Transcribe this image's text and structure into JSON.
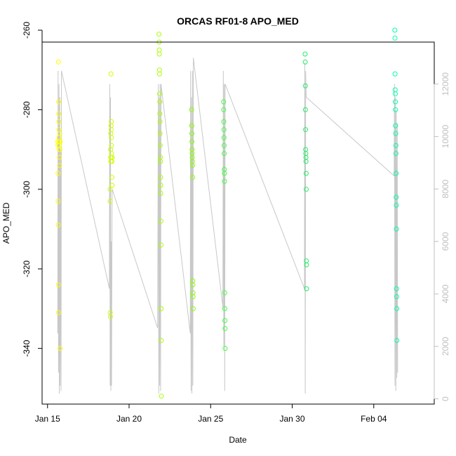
{
  "chart_data": {
    "type": "scatter",
    "title": "ORCAS RF01-8 APO_MED",
    "xlabel": "Date",
    "ylabel": "APO_MED",
    "x_axis": {
      "type": "date",
      "xlim": [
        "2016-01-14T16:00",
        "2016-02-07T17:00"
      ],
      "ticks": [
        {
          "date": "2016-01-15T00:00",
          "label": "Jan 15"
        },
        {
          "date": "2016-01-20T00:00",
          "label": "Jan 20"
        },
        {
          "date": "2016-01-25T00:00",
          "label": "Jan 25"
        },
        {
          "date": "2016-01-30T00:00",
          "label": "Jan 30"
        },
        {
          "date": "2016-02-04T00:00",
          "label": "Feb 04"
        }
      ]
    },
    "y_axis": {
      "ylim": [
        -354,
        -263
      ],
      "ticks": [
        -260,
        -280,
        -300,
        -320,
        -340
      ]
    },
    "right_axis": {
      "color": "#bfbfbf",
      "ylim": [
        -200,
        13600
      ],
      "ticks": [
        0,
        2000,
        4000,
        6000,
        8000,
        10000,
        12000
      ]
    },
    "grid": false,
    "altitude_trace_color": "#c8c8c8",
    "altitude_trace": [
      [
        "2016-01-15T15:00",
        2500
      ],
      [
        "2016-01-15T15:30",
        12500
      ],
      [
        "2016-01-15T16:10",
        1000
      ],
      [
        "2016-01-15T16:50",
        12000
      ],
      [
        "2016-01-15T17:20",
        200
      ],
      [
        "2016-01-15T18:00",
        11500
      ],
      [
        "2016-01-15T18:30",
        500
      ],
      [
        "2016-01-15T19:10",
        9500
      ],
      [
        "2016-01-15T19:50",
        300
      ],
      [
        "2016-01-15T20:30",
        12500
      ],
      [
        "2016-01-18T19:00",
        4200
      ],
      [
        "2016-01-18T19:30",
        12000
      ],
      [
        "2016-01-18T20:10",
        500
      ],
      [
        "2016-01-18T20:40",
        11500
      ],
      [
        "2016-01-18T21:10",
        300
      ],
      [
        "2016-01-18T21:40",
        6000
      ],
      [
        "2016-01-18T22:10",
        500
      ],
      [
        "2016-01-18T23:00",
        8000
      ],
      [
        "2016-01-21T18:00",
        2700
      ],
      [
        "2016-01-21T19:00",
        12000
      ],
      [
        "2016-01-21T19:40",
        200
      ],
      [
        "2016-01-21T20:20",
        11500
      ],
      [
        "2016-01-21T21:00",
        500
      ],
      [
        "2016-01-21T21:40",
        12000
      ],
      [
        "2016-01-21T22:20",
        300
      ],
      [
        "2016-01-21T23:00",
        12000
      ],
      [
        "2016-01-23T18:00",
        2500
      ],
      [
        "2016-01-23T18:30",
        12500
      ],
      [
        "2016-01-23T19:10",
        300
      ],
      [
        "2016-01-23T19:50",
        11500
      ],
      [
        "2016-01-23T20:30",
        200
      ],
      [
        "2016-01-23T21:10",
        12500
      ],
      [
        "2016-01-23T21:50",
        500
      ],
      [
        "2016-01-23T22:30",
        13000
      ],
      [
        "2016-01-25T18:00",
        3500
      ],
      [
        "2016-01-25T18:40",
        12500
      ],
      [
        "2016-01-25T19:20",
        2000
      ],
      [
        "2016-01-25T20:00",
        12000
      ],
      [
        "2016-01-25T20:40",
        300
      ],
      [
        "2016-01-25T21:20",
        12000
      ],
      [
        "2016-01-30T18:00",
        4200
      ],
      [
        "2016-01-30T18:30",
        12800
      ],
      [
        "2016-01-30T19:10",
        200
      ],
      [
        "2016-01-30T19:50",
        12500
      ],
      [
        "2016-01-30T20:40",
        11500
      ],
      [
        "2016-02-05T06:00",
        8500
      ],
      [
        "2016-02-05T06:30",
        12000
      ],
      [
        "2016-02-05T07:10",
        500
      ],
      [
        "2016-02-05T07:50",
        11500
      ],
      [
        "2016-02-05T08:30",
        300
      ],
      [
        "2016-02-05T09:10",
        11000
      ],
      [
        "2016-02-05T09:50",
        800
      ],
      [
        "2016-02-05T10:30",
        10500
      ],
      [
        "2016-02-05T11:10",
        1000
      ]
    ],
    "series": [
      {
        "color": "#ffff00",
        "points": [
          [
            "2016-01-15T16:00",
            -268
          ],
          [
            "2016-01-15T15:10",
            -288
          ],
          [
            "2016-01-15T15:20",
            -289
          ],
          [
            "2016-01-15T15:30",
            -296
          ],
          [
            "2016-01-15T15:40",
            -303
          ],
          [
            "2016-01-15T15:50",
            -309
          ],
          [
            "2016-01-15T16:00",
            -324
          ],
          [
            "2016-01-15T16:10",
            -331
          ],
          [
            "2016-01-15T16:20",
            -278
          ],
          [
            "2016-01-15T16:30",
            -281
          ],
          [
            "2016-01-15T16:40",
            -283
          ],
          [
            "2016-01-15T16:50",
            -285
          ],
          [
            "2016-01-15T17:00",
            -287
          ],
          [
            "2016-01-15T17:10",
            -288
          ],
          [
            "2016-01-15T17:20",
            -289
          ],
          [
            "2016-01-15T17:30",
            -290
          ],
          [
            "2016-01-15T17:40",
            -292
          ],
          [
            "2016-01-15T17:50",
            -294
          ],
          [
            "2016-01-15T18:00",
            -286
          ],
          [
            "2016-01-15T18:10",
            -288
          ],
          [
            "2016-01-15T18:20",
            -290
          ],
          [
            "2016-01-15T18:30",
            -340
          ],
          [
            "2016-01-15T18:40",
            -288
          ]
        ]
      },
      {
        "color": "#ccff00",
        "points": [
          [
            "2016-01-18T20:00",
            -300
          ],
          [
            "2016-01-18T20:10",
            -303
          ],
          [
            "2016-01-18T20:20",
            -331
          ],
          [
            "2016-01-18T20:30",
            -332
          ],
          [
            "2016-01-18T20:40",
            -290
          ],
          [
            "2016-01-18T20:50",
            -292
          ],
          [
            "2016-01-18T21:00",
            -286
          ],
          [
            "2016-01-18T21:10",
            -293
          ],
          [
            "2016-01-18T21:20",
            -271
          ],
          [
            "2016-01-18T21:30",
            -284
          ],
          [
            "2016-01-18T21:40",
            -285
          ],
          [
            "2016-01-18T21:50",
            -283
          ],
          [
            "2016-01-18T22:00",
            -287
          ],
          [
            "2016-01-18T22:10",
            -289
          ],
          [
            "2016-01-18T22:20",
            -291
          ],
          [
            "2016-01-18T22:30",
            -292
          ],
          [
            "2016-01-18T22:40",
            -293
          ],
          [
            "2016-01-18T22:50",
            -297
          ],
          [
            "2016-01-18T23:00",
            -299
          ],
          [
            "2016-01-18T23:10",
            -292
          ]
        ]
      },
      {
        "color": "#aaff00",
        "points": [
          [
            "2016-01-21T20:00",
            -261
          ],
          [
            "2016-01-21T20:10",
            -263
          ],
          [
            "2016-01-21T20:20",
            -265
          ],
          [
            "2016-01-21T20:30",
            -266
          ],
          [
            "2016-01-21T20:40",
            -270
          ],
          [
            "2016-01-21T20:50",
            -271
          ],
          [
            "2016-01-21T21:00",
            -276
          ],
          [
            "2016-01-21T21:10",
            -278
          ],
          [
            "2016-01-21T21:20",
            -281
          ],
          [
            "2016-01-21T21:30",
            -283
          ],
          [
            "2016-01-21T21:40",
            -286
          ],
          [
            "2016-01-21T21:50",
            -289
          ],
          [
            "2016-01-21T22:00",
            -292
          ],
          [
            "2016-01-21T22:10",
            -293
          ],
          [
            "2016-01-21T22:20",
            -297
          ],
          [
            "2016-01-21T22:30",
            -299
          ],
          [
            "2016-01-21T22:40",
            -301
          ],
          [
            "2016-01-21T22:50",
            -308
          ],
          [
            "2016-01-21T23:00",
            -314
          ],
          [
            "2016-01-21T23:10",
            -330
          ],
          [
            "2016-01-21T23:20",
            -338
          ],
          [
            "2016-01-21T23:30",
            -352
          ]
        ]
      },
      {
        "color": "#88ff00",
        "points": [
          [
            "2016-01-23T20:00",
            -280
          ],
          [
            "2016-01-23T20:10",
            -284
          ],
          [
            "2016-01-23T20:20",
            -286
          ],
          [
            "2016-01-23T20:30",
            -288
          ],
          [
            "2016-01-23T20:40",
            -290
          ],
          [
            "2016-01-23T20:50",
            -291
          ],
          [
            "2016-01-23T21:00",
            -292
          ],
          [
            "2016-01-23T21:10",
            -293
          ],
          [
            "2016-01-23T21:20",
            -294
          ],
          [
            "2016-01-23T21:30",
            -297
          ],
          [
            "2016-01-23T21:40",
            -323
          ],
          [
            "2016-01-23T21:50",
            -324
          ],
          [
            "2016-01-23T22:00",
            -326
          ],
          [
            "2016-01-23T22:10",
            -327
          ],
          [
            "2016-01-23T22:20",
            -330
          ]
        ]
      },
      {
        "color": "#44ff44",
        "points": [
          [
            "2016-01-25T19:00",
            -278
          ],
          [
            "2016-01-25T19:10",
            -280
          ],
          [
            "2016-01-25T19:20",
            -283
          ],
          [
            "2016-01-25T19:30",
            -285
          ],
          [
            "2016-01-25T19:40",
            -287
          ],
          [
            "2016-01-25T19:50",
            -289
          ],
          [
            "2016-01-25T20:00",
            -291
          ],
          [
            "2016-01-25T20:10",
            -295
          ],
          [
            "2016-01-25T20:20",
            -296
          ],
          [
            "2016-01-25T20:30",
            -298
          ],
          [
            "2016-01-25T20:40",
            -326
          ],
          [
            "2016-01-25T20:50",
            -330
          ],
          [
            "2016-01-25T21:00",
            -333
          ],
          [
            "2016-01-25T21:10",
            -335
          ],
          [
            "2016-01-25T21:20",
            -340
          ]
        ]
      },
      {
        "color": "#22ee66",
        "points": [
          [
            "2016-01-30T19:00",
            -266
          ],
          [
            "2016-01-30T19:10",
            -268
          ],
          [
            "2016-01-30T19:20",
            -274
          ],
          [
            "2016-01-30T19:30",
            -280
          ],
          [
            "2016-01-30T19:40",
            -285
          ],
          [
            "2016-01-30T19:50",
            -290
          ],
          [
            "2016-01-30T20:00",
            -291
          ],
          [
            "2016-01-30T20:10",
            -292
          ],
          [
            "2016-01-30T20:20",
            -293
          ],
          [
            "2016-01-30T20:30",
            -296
          ],
          [
            "2016-01-30T20:40",
            -300
          ],
          [
            "2016-01-30T20:50",
            -318
          ],
          [
            "2016-01-30T21:00",
            -319
          ],
          [
            "2016-01-30T21:10",
            -325
          ]
        ]
      },
      {
        "color": "#00ffaa",
        "points": [
          [
            "2016-02-05T07:00",
            -260
          ],
          [
            "2016-02-05T07:10",
            -262
          ],
          [
            "2016-02-05T07:20",
            -271
          ],
          [
            "2016-02-05T07:30",
            -275
          ],
          [
            "2016-02-05T07:40",
            -276
          ],
          [
            "2016-02-05T07:50",
            -278
          ],
          [
            "2016-02-05T08:00",
            -280
          ],
          [
            "2016-02-05T08:10",
            -284
          ],
          [
            "2016-02-05T08:20",
            -286
          ],
          [
            "2016-02-05T08:30",
            -289
          ],
          [
            "2016-02-05T08:40",
            -291
          ],
          [
            "2016-02-05T08:50",
            -296
          ],
          [
            "2016-02-05T09:00",
            -302
          ],
          [
            "2016-02-05T09:10",
            -304
          ],
          [
            "2016-02-05T09:20",
            -310
          ],
          [
            "2016-02-05T09:30",
            -325
          ],
          [
            "2016-02-05T09:40",
            -327
          ],
          [
            "2016-02-05T09:50",
            -330
          ],
          [
            "2016-02-05T10:00",
            -338
          ]
        ]
      }
    ]
  }
}
